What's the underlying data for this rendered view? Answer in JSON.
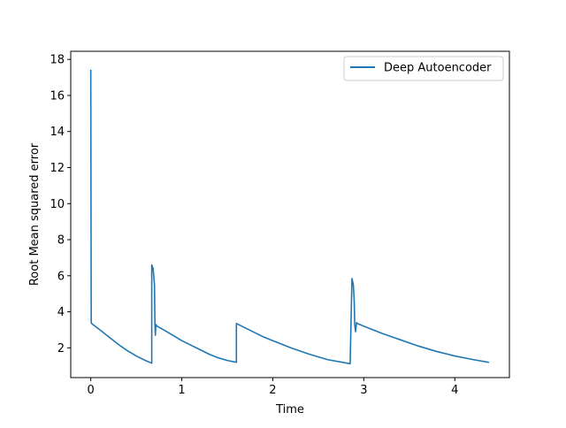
{
  "chart_data": {
    "type": "line",
    "title": "",
    "xlabel": "Time",
    "ylabel": "Root Mean squared error",
    "xlim": [
      -0.22,
      4.6
    ],
    "ylim": [
      0.35,
      18.45
    ],
    "xticks": [
      0,
      1,
      2,
      3,
      4
    ],
    "xtick_labels": [
      "0",
      "1",
      "2",
      "3",
      "4"
    ],
    "yticks": [
      2,
      4,
      6,
      8,
      10,
      12,
      14,
      16,
      18
    ],
    "ytick_labels": [
      "2",
      "4",
      "6",
      "8",
      "10",
      "12",
      "14",
      "16",
      "18"
    ],
    "grid": false,
    "legend": {
      "position": "top-right",
      "entries": [
        "Deep Autoencoder"
      ]
    },
    "series": [
      {
        "name": "Deep Autoencoder",
        "color": "#1f77b4",
        "x": [
          0.0,
          0.005,
          0.01,
          0.1,
          0.2,
          0.3,
          0.4,
          0.5,
          0.6,
          0.67,
          0.67,
          0.685,
          0.7,
          0.705,
          0.71,
          0.715,
          0.72,
          0.73,
          0.8,
          0.9,
          1.0,
          1.1,
          1.2,
          1.3,
          1.4,
          1.5,
          1.6,
          1.6,
          1.7,
          1.8,
          1.9,
          2.0,
          2.2,
          2.4,
          2.6,
          2.85,
          2.87,
          2.885,
          2.895,
          2.9,
          2.91,
          2.92,
          2.93,
          3.0,
          3.2,
          3.4,
          3.6,
          3.8,
          4.0,
          4.2,
          4.37
        ],
        "y": [
          17.4,
          3.4,
          3.35,
          3.0,
          2.6,
          2.2,
          1.85,
          1.55,
          1.3,
          1.15,
          6.6,
          6.4,
          5.5,
          3.3,
          2.7,
          3.3,
          3.25,
          3.2,
          3.0,
          2.7,
          2.4,
          2.15,
          1.9,
          1.65,
          1.45,
          1.3,
          1.2,
          3.35,
          3.1,
          2.85,
          2.6,
          2.4,
          2.0,
          1.65,
          1.35,
          1.12,
          5.85,
          5.5,
          4.6,
          3.3,
          2.9,
          3.4,
          3.35,
          3.2,
          2.8,
          2.45,
          2.1,
          1.8,
          1.55,
          1.35,
          1.2
        ]
      }
    ]
  }
}
